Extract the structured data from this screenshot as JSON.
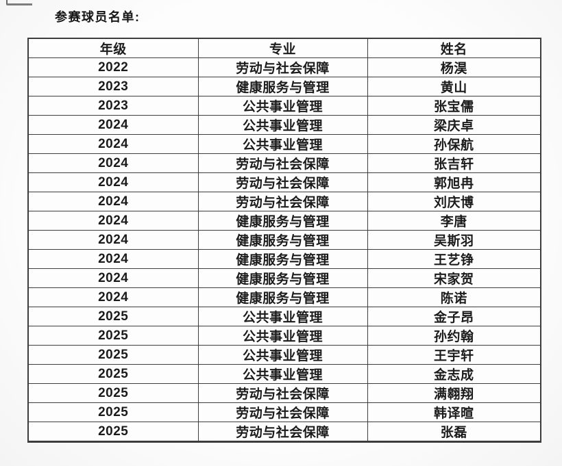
{
  "page": {
    "title": "参赛球员名单:"
  },
  "table": {
    "headers": [
      "年级",
      "专业",
      "姓名"
    ],
    "rows": [
      [
        "2022",
        "劳动与社会保障",
        "杨淏"
      ],
      [
        "2023",
        "健康服务与管理",
        "黄山"
      ],
      [
        "2023",
        "公共事业管理",
        "张宝儒"
      ],
      [
        "2024",
        "公共事业管理",
        "梁庆卓"
      ],
      [
        "2024",
        "公共事业管理",
        "孙保航"
      ],
      [
        "2024",
        "劳动与社会保障",
        "张吉轩"
      ],
      [
        "2024",
        "劳动与社会保障",
        "郭旭冉"
      ],
      [
        "2024",
        "劳动与社会保障",
        "刘庆博"
      ],
      [
        "2024",
        "健康服务与管理",
        "李唐"
      ],
      [
        "2024",
        "健康服务与管理",
        "吴斯羽"
      ],
      [
        "2024",
        "健康服务与管理",
        "王艺铮"
      ],
      [
        "2024",
        "健康服务与管理",
        "宋家贺"
      ],
      [
        "2024",
        "健康服务与管理",
        "陈诺"
      ],
      [
        "2025",
        "公共事业管理",
        "金子昂"
      ],
      [
        "2025",
        "公共事业管理",
        "孙约翰"
      ],
      [
        "2025",
        "公共事业管理",
        "王宇轩"
      ],
      [
        "2025",
        "公共事业管理",
        "金志成"
      ],
      [
        "2025",
        "劳动与社会保障",
        "满翱翔"
      ],
      [
        "2025",
        "劳动与社会保障",
        "韩译暄"
      ],
      [
        "2025",
        "劳动与社会保障",
        "张磊"
      ]
    ]
  },
  "colors": {
    "text": "#1b1b1b",
    "border": "#3c3c3c",
    "background": "#fdfdfd"
  }
}
